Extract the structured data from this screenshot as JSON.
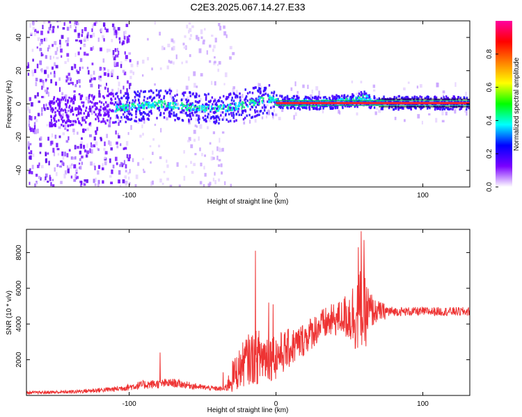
{
  "title": "C2E3.2025.067.14.27.E33",
  "chart_data": [
    {
      "type": "heatmap",
      "xlabel": "Height of straight line (km)",
      "ylabel": "Frequency (Hz)",
      "xlim": [
        -170,
        132
      ],
      "ylim": [
        -50,
        50
      ],
      "xticks": [
        -100,
        0,
        100
      ],
      "yticks": [
        -40,
        -20,
        0,
        20,
        40
      ],
      "colorbar": {
        "label": "Normalized spectral amplitude",
        "range": [
          0,
          1
        ],
        "ticks": [
          0.0,
          0.2,
          0.4,
          0.6,
          0.8
        ],
        "colormap": [
          "#ffffff",
          "#7a00ff",
          "#0000ff",
          "#00ffff",
          "#00ff00",
          "#ffff00",
          "#ff8000",
          "#ff0000",
          "#ff00a0"
        ]
      },
      "ridge": [
        {
          "x": -170,
          "y": -5
        },
        {
          "x": -150,
          "y": -5
        },
        {
          "x": -120,
          "y": -3
        },
        {
          "x": -100,
          "y": -2
        },
        {
          "x": -80,
          "y": 0
        },
        {
          "x": -60,
          "y": -2
        },
        {
          "x": -40,
          "y": -3
        },
        {
          "x": -30,
          "y": -2
        },
        {
          "x": -20,
          "y": 0
        },
        {
          "x": -10,
          "y": 2
        },
        {
          "x": -5,
          "y": 3
        },
        {
          "x": 0,
          "y": 1
        },
        {
          "x": 20,
          "y": 0.5
        },
        {
          "x": 40,
          "y": 1
        },
        {
          "x": 55,
          "y": 2
        },
        {
          "x": 60,
          "y": 4
        },
        {
          "x": 65,
          "y": 0.5
        },
        {
          "x": 132,
          "y": 0.5
        }
      ]
    },
    {
      "type": "line",
      "xlabel": "Height of straight line (km)",
      "ylabel": "SNR (10 * v/v)",
      "xlim": [
        -170,
        132
      ],
      "ylim": [
        0,
        9300
      ],
      "xticks": [
        -100,
        0,
        100
      ],
      "yticks": [
        2000,
        4000,
        6000,
        8000
      ],
      "color": "#ee3333",
      "envelope": [
        {
          "x": -170,
          "mean": 150,
          "amp": 80
        },
        {
          "x": -140,
          "mean": 200,
          "amp": 100
        },
        {
          "x": -110,
          "mean": 350,
          "amp": 150
        },
        {
          "x": -90,
          "mean": 600,
          "amp": 250
        },
        {
          "x": -70,
          "mean": 700,
          "amp": 250
        },
        {
          "x": -50,
          "mean": 450,
          "amp": 150
        },
        {
          "x": -35,
          "mean": 350,
          "amp": 130
        },
        {
          "x": -30,
          "mean": 1000,
          "amp": 900
        },
        {
          "x": -20,
          "mean": 2000,
          "amp": 1400
        },
        {
          "x": -10,
          "mean": 2200,
          "amp": 1600
        },
        {
          "x": 0,
          "mean": 2200,
          "amp": 1300
        },
        {
          "x": 15,
          "mean": 2900,
          "amp": 1000
        },
        {
          "x": 30,
          "mean": 3900,
          "amp": 900
        },
        {
          "x": 45,
          "mean": 4400,
          "amp": 1000
        },
        {
          "x": 58,
          "mean": 4600,
          "amp": 2600
        },
        {
          "x": 67,
          "mean": 4700,
          "amp": 700
        },
        {
          "x": 80,
          "mean": 4700,
          "amp": 250
        },
        {
          "x": 132,
          "mean": 4700,
          "amp": 250
        }
      ],
      "spikes": [
        {
          "x": -79,
          "y": 2400
        },
        {
          "x": -36,
          "y": 1300
        },
        {
          "x": -14,
          "y": 8100
        },
        {
          "x": -5,
          "y": 5200
        },
        {
          "x": -2,
          "y": 5100
        },
        {
          "x": 56,
          "y": 8300
        },
        {
          "x": 58,
          "y": 9200
        },
        {
          "x": 60,
          "y": 8700
        }
      ]
    }
  ]
}
